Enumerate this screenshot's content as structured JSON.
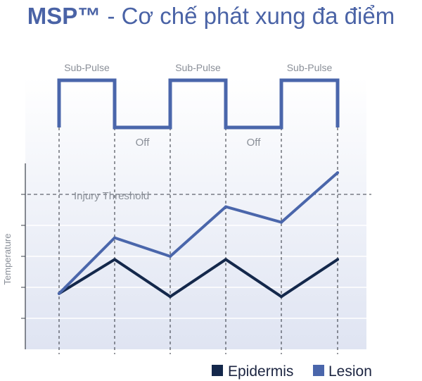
{
  "title_main": "MSP™",
  "title_sub": "- Cơ chế phát xung đa điểm",
  "chart_data": {
    "type": "line",
    "ylabel": "Temperature",
    "grid": true,
    "x_markers": [
      0,
      1,
      2,
      3,
      4,
      5
    ],
    "pulse": {
      "segments": [
        "Sub-Pulse",
        "Off",
        "Sub-Pulse",
        "Off",
        "Sub-Pulse"
      ],
      "on_label": "Sub-Pulse",
      "off_label": "Off"
    },
    "threshold": {
      "label": "Injury Threshold",
      "value": 5.0
    },
    "ylim": [
      0,
      5.5
    ],
    "series": [
      {
        "name": "Epidermis",
        "color": "#14284b",
        "x": [
          0,
          1,
          2,
          3,
          4,
          5
        ],
        "values": [
          1.8,
          2.9,
          1.7,
          2.9,
          1.7,
          2.9
        ]
      },
      {
        "name": "Lesion",
        "color": "#4a66ab",
        "x": [
          0,
          1,
          2,
          3,
          4,
          5
        ],
        "values": [
          1.8,
          3.6,
          3.0,
          4.6,
          4.1,
          5.7
        ]
      }
    ],
    "legend": "bottom-right"
  }
}
